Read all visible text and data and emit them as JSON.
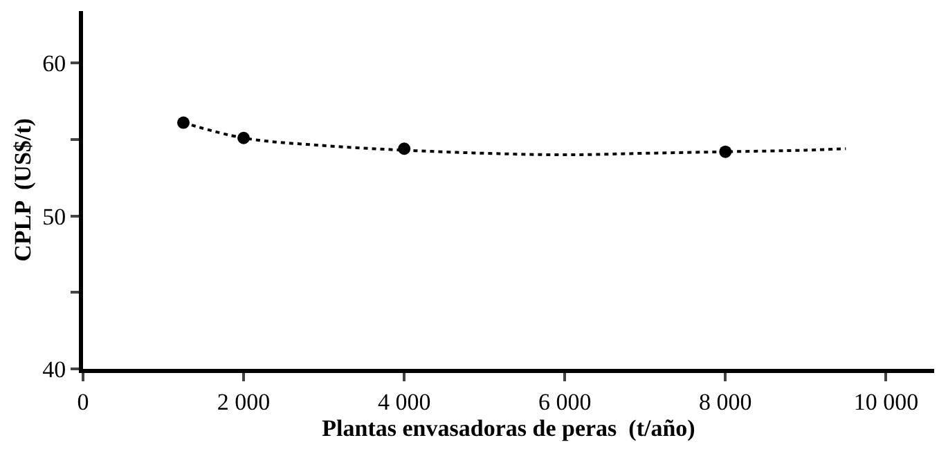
{
  "chart_data": {
    "type": "scatter",
    "xlabel": "Plantas envasadoras de peras  (t/año)",
    "ylabel": "CPLP  (US$/t)",
    "xlim": [
      0,
      10600
    ],
    "ylim": [
      40,
      63.4
    ],
    "xticks": [
      0,
      {
        "value": 2000,
        "label": "2 000"
      },
      {
        "value": 4000,
        "label": "4 000"
      },
      {
        "value": 6000,
        "label": "6 000"
      },
      {
        "value": 8000,
        "label": "8 000"
      },
      {
        "value": 10000,
        "label": "10 000"
      }
    ],
    "yticks": [
      40,
      {
        "value": 45,
        "label": null
      },
      50,
      {
        "value": 55,
        "label": null
      },
      60
    ],
    "grid": false,
    "series": [
      {
        "type": "line",
        "color": "#000000",
        "line_style": "dotted",
        "marker": "none",
        "x": [
          1250,
          2000,
          3000,
          4000,
          5000,
          6000,
          7000,
          8000,
          9000,
          9500
        ],
        "values": [
          56.1,
          55.1,
          54.6,
          54.3,
          54.1,
          54.0,
          54.1,
          54.2,
          54.3,
          54.4
        ]
      },
      {
        "color": "#000000",
        "marker": "circle",
        "x": [
          1250,
          2000,
          4000,
          8000
        ],
        "values": [
          56.1,
          55.1,
          54.4,
          54.2
        ]
      }
    ]
  }
}
